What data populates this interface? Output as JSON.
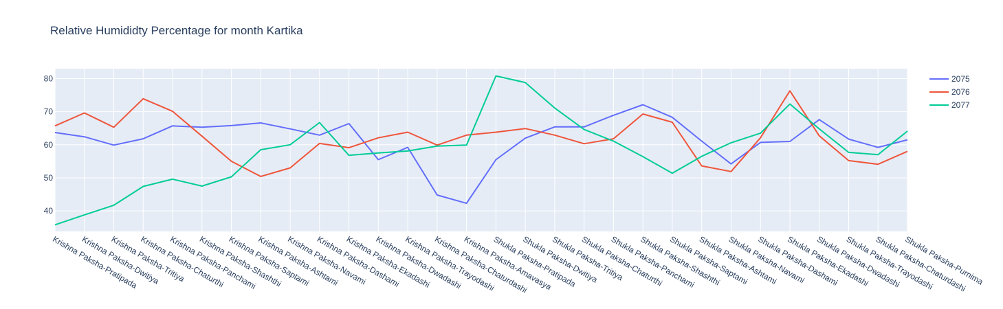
{
  "chart_data": {
    "type": "line",
    "title": "Relative Humididty Percentage for month Kartika",
    "xlabel": "",
    "ylabel": "",
    "ylim": [
      33.8,
      83
    ],
    "yticks": [
      40,
      50,
      60,
      70,
      80
    ],
    "grid": true,
    "legend_position": "top-right",
    "categories": [
      "Krishna Paksha-Pratipada",
      "Krishna Paksha-Dwitiya",
      "Krishna Paksha-Tritiya",
      "Krishna Paksha-Chaturthi",
      "Krishna Paksha-Panchami",
      "Krishna Paksha-Shashthi",
      "Krishna Paksha-Saptami",
      "Krishna Paksha-Ashtami",
      "Krishna Paksha-Navami",
      "Krishna Paksha-Dashami",
      "Krishna Paksha-Ekadashi",
      "Krishna Paksha-Dwadashi",
      "Krishna Paksha-Trayodashi",
      "Krishna Paksha-Chaturdashi",
      "Krishna Paksha-Amavasya",
      "Shukla Paksha-Pratipada",
      "Shukla Paksha-Dwitiya",
      "Shukla Paksha-Tritiya",
      "Shukla Paksha-Chaturthi",
      "Shukla Paksha-Panchami",
      "Shukla Paksha-Shashthi",
      "Shukla Paksha-Saptami",
      "Shukla Paksha-Ashtami",
      "Shukla Paksha-Navami",
      "Shukla Paksha-Dashami",
      "Shukla Paksha-Ekadashi",
      "Shukla Paksha-Dwadashi",
      "Shukla Paksha-Trayodashi",
      "Shukla Paksha-Chaturdashi",
      "Shukla Paksha-Purnima"
    ],
    "series": [
      {
        "name": "2075",
        "color": "#636efa",
        "values": [
          63.7,
          62.4,
          59.9,
          61.8,
          65.7,
          65.3,
          65.8,
          66.6,
          64.8,
          62.9,
          66.4,
          55.5,
          59.2,
          44.8,
          42.3,
          55.5,
          62.0,
          65.4,
          65.4,
          68.9,
          72.1,
          68.3,
          61.1,
          54.2,
          60.7,
          61.0,
          67.6,
          61.7,
          59.2,
          61.5
        ]
      },
      {
        "name": "2076",
        "color": "#ef553b",
        "values": [
          65.7,
          69.6,
          65.3,
          73.9,
          70.1,
          62.6,
          55.0,
          50.4,
          53.0,
          60.4,
          59.1,
          62.1,
          63.8,
          59.9,
          62.9,
          63.8,
          64.9,
          62.9,
          60.3,
          61.8,
          69.3,
          66.8,
          53.6,
          51.9,
          62.1,
          76.3,
          62.7,
          55.2,
          54.1,
          58.0
        ]
      },
      {
        "name": "2077",
        "color": "#00cc96",
        "values": [
          35.8,
          38.8,
          41.7,
          47.4,
          49.6,
          47.5,
          50.3,
          58.5,
          60.0,
          66.7,
          56.8,
          57.5,
          58.1,
          59.6,
          59.9,
          80.8,
          78.8,
          71.1,
          64.6,
          61.1,
          56.4,
          51.4,
          56.5,
          60.6,
          63.5,
          72.3,
          64.8,
          57.7,
          57.0,
          64.1
        ]
      }
    ]
  }
}
